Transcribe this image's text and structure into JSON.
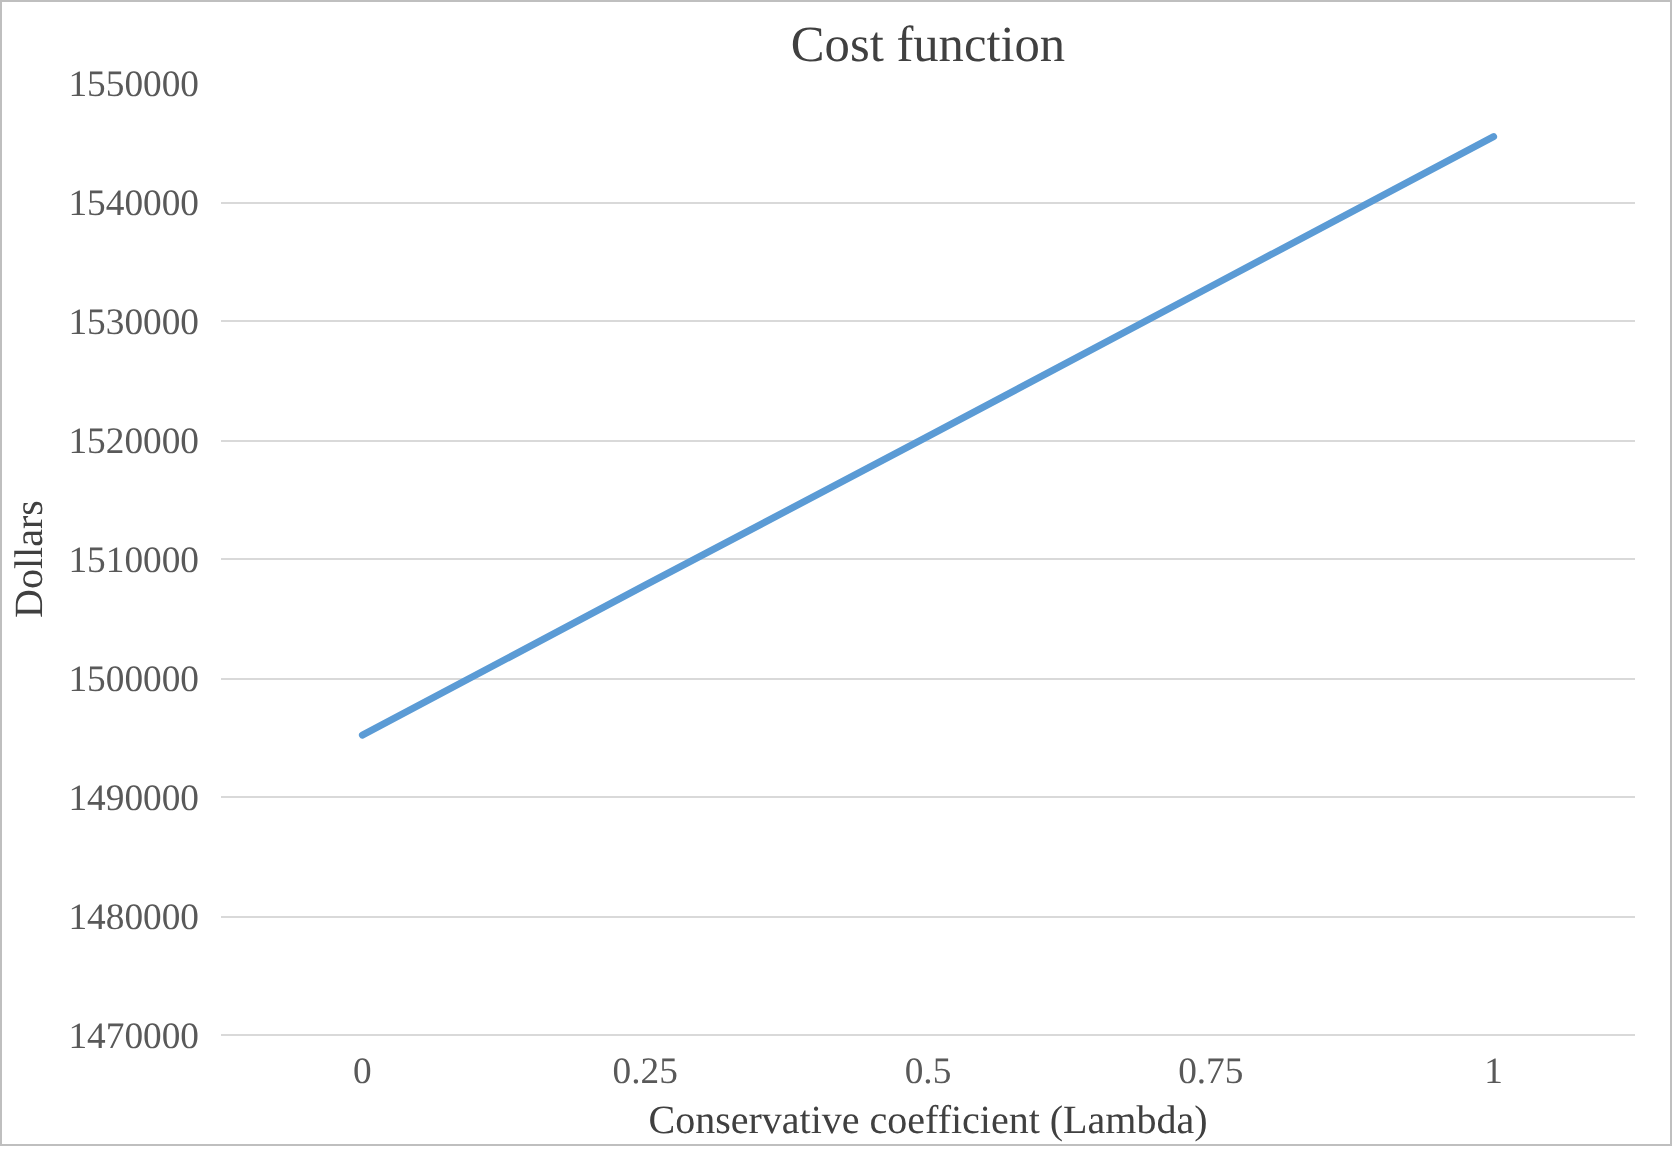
{
  "chart_data": {
    "type": "line",
    "title": "Cost function",
    "xlabel": "Conservative coefficient (Lambda)",
    "ylabel": "Dollars",
    "categories": [
      "0",
      "0.25",
      "0.5",
      "0.75",
      "1"
    ],
    "series": [
      {
        "color": "#5b9bd5",
        "values": [
          1495200,
          1507800,
          1520300,
          1532900,
          1545500
        ]
      }
    ],
    "ylim": [
      1470000,
      1550000
    ],
    "yticks": [
      1470000,
      1480000,
      1490000,
      1500000,
      1510000,
      1520000,
      1530000,
      1540000,
      1550000
    ],
    "grid": "y",
    "marker": "none",
    "line_style": "solid"
  }
}
